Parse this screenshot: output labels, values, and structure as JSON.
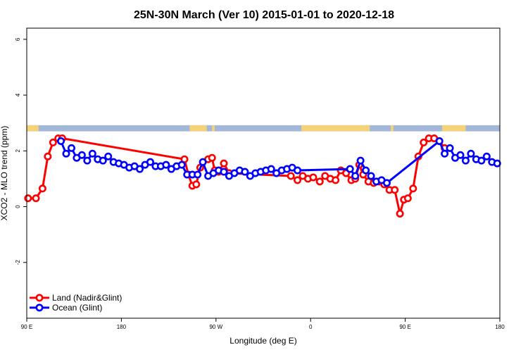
{
  "chart_data": {
    "type": "line",
    "title": "25N-30N March (Ver 10)   2015-01-01 to 2020-12-18",
    "xlabel": "Longitude (deg E)",
    "ylabel": "XCO2 - MLO trend (ppm)",
    "xlim": [
      90,
      450
    ],
    "ylim": [
      -4,
      6.4
    ],
    "x_tick_values": [
      90,
      162,
      234,
      306,
      378,
      450
    ],
    "x_tick_labels": [
      "90 E",
      "180",
      "90 W",
      "0",
      "90 E",
      "180"
    ],
    "y_ticks": [
      -2,
      0,
      2,
      4,
      6
    ],
    "grid": false,
    "legend_position": "bottom-left",
    "land_band": {
      "ymin": 2.7,
      "ymax": 2.92,
      "ocean_color": "#a3b8d8",
      "land_color": "#f4d27a",
      "land_spans": [
        [
          90,
          99
        ],
        [
          214,
          227
        ],
        [
          231,
          233
        ],
        [
          299,
          351
        ],
        [
          367,
          369
        ],
        [
          406,
          424
        ]
      ]
    },
    "series": [
      {
        "name": "Land (Nadir&Glint)",
        "color": "#ff0000",
        "x": [
          91,
          97,
          102,
          106,
          110,
          114,
          117,
          210,
          213,
          216,
          219,
          222,
          228,
          231,
          233,
          236,
          240,
          244,
          291,
          296,
          300,
          304,
          308,
          313,
          317,
          321,
          325,
          329,
          333,
          337,
          340,
          343,
          346,
          350,
          354,
          358,
          362,
          366,
          370,
          374,
          377,
          380,
          384,
          388,
          392,
          396,
          400,
          404,
          408
        ],
        "y": [
          0.3,
          0.3,
          0.65,
          1.8,
          2.3,
          2.45,
          2.45,
          1.7,
          1.15,
          0.75,
          0.8,
          1.4,
          1.7,
          1.75,
          1.3,
          1.25,
          1.55,
          1.2,
          1.1,
          0.95,
          1.1,
          1.0,
          1.05,
          0.9,
          1.1,
          1.0,
          0.95,
          1.3,
          1.2,
          0.95,
          1.0,
          1.5,
          1.15,
          0.9,
          0.85,
          0.9,
          0.8,
          0.6,
          0.6,
          -0.25,
          0.25,
          0.3,
          0.65,
          1.8,
          2.3,
          2.45,
          2.45,
          2.35,
          2.1
        ]
      },
      {
        "name": "Ocean (Glint)",
        "color": "#0000ff",
        "x": [
          116,
          120,
          124,
          128,
          132,
          136,
          140,
          144,
          148,
          152,
          156,
          160,
          164,
          168,
          172,
          176,
          180,
          184,
          188,
          192,
          196,
          200,
          204,
          208,
          212,
          216,
          220,
          224,
          228,
          232,
          236,
          240,
          244,
          248,
          252,
          256,
          260,
          264,
          268,
          272,
          276,
          280,
          284,
          288,
          292,
          296,
          336,
          340,
          344,
          348,
          352,
          356,
          360,
          364,
          404,
          408,
          412,
          416,
          420,
          424,
          428,
          432,
          436,
          440,
          444,
          448
        ],
        "y": [
          2.35,
          1.9,
          2.1,
          1.75,
          1.85,
          1.65,
          1.9,
          1.7,
          1.65,
          1.8,
          1.6,
          1.55,
          1.5,
          1.4,
          1.45,
          1.35,
          1.5,
          1.6,
          1.45,
          1.45,
          1.5,
          1.35,
          1.45,
          1.5,
          1.15,
          1.15,
          1.15,
          1.6,
          1.1,
          1.2,
          1.3,
          1.25,
          1.1,
          1.2,
          1.3,
          1.25,
          1.1,
          1.2,
          1.25,
          1.3,
          1.35,
          1.2,
          1.3,
          1.35,
          1.4,
          1.3,
          1.35,
          1.1,
          1.65,
          1.3,
          1.1,
          0.9,
          0.95,
          0.85,
          2.35,
          1.9,
          2.1,
          1.75,
          1.85,
          1.65,
          1.9,
          1.7,
          1.65,
          1.8,
          1.6,
          1.55
        ]
      }
    ]
  }
}
